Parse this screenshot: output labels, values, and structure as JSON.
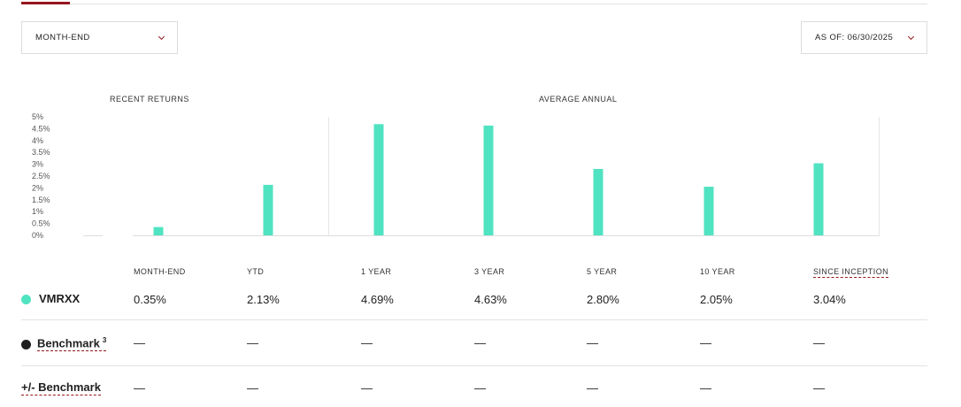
{
  "controls": {
    "period_dropdown": {
      "label": "MONTH-END"
    },
    "asof_dropdown": {
      "label": "AS OF: 06/30/2025"
    }
  },
  "sections": {
    "recent": "RECENT RETURNS",
    "average": "AVERAGE ANNUAL"
  },
  "colors": {
    "accent": "#96151d",
    "fund_bar": "#50e3c2",
    "benchmark": "#1f1f1f"
  },
  "chart_data": {
    "type": "bar",
    "categories": [
      "MONTH-END",
      "YTD",
      "1 YEAR",
      "3 YEAR",
      "5 YEAR",
      "10 YEAR",
      "SINCE INCEPTION"
    ],
    "series": [
      {
        "name": "VMRXX",
        "values": [
          0.35,
          2.13,
          4.69,
          4.63,
          2.8,
          2.05,
          3.04
        ]
      }
    ],
    "y_ticks": [
      "5%",
      "4.5%",
      "4%",
      "3.5%",
      "3%",
      "2.5%",
      "2%",
      "1.5%",
      "1%",
      "0.5%",
      "0%"
    ],
    "ylim": [
      0,
      5
    ],
    "grid": false,
    "groups": [
      "RECENT RETURNS",
      "AVERAGE ANNUAL"
    ]
  },
  "table": {
    "columns": [
      "MONTH-END",
      "YTD",
      "1 YEAR",
      "3 YEAR",
      "5 YEAR",
      "10 YEAR",
      "SINCE INCEPTION"
    ],
    "rows": [
      {
        "name": "VMRXX",
        "values": [
          "0.35%",
          "2.13%",
          "4.69%",
          "4.63%",
          "2.80%",
          "2.05%",
          "3.04%"
        ]
      },
      {
        "name": "Benchmark",
        "footnote": "3",
        "values": [
          "—",
          "—",
          "—",
          "—",
          "—",
          "—",
          "—"
        ]
      },
      {
        "name": "+/- Benchmark",
        "values": [
          "—",
          "—",
          "—",
          "—",
          "—",
          "—",
          "—"
        ]
      }
    ]
  }
}
